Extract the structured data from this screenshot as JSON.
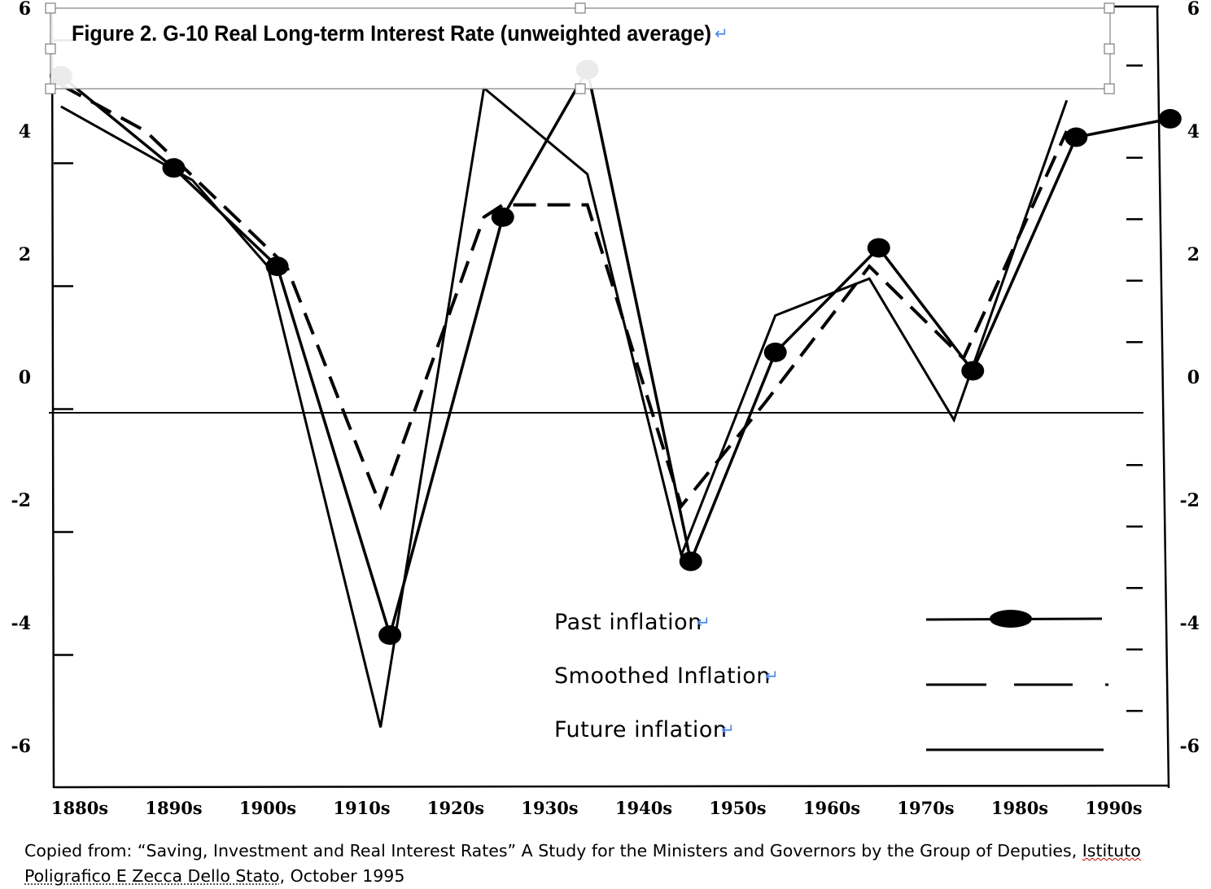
{
  "chart_data": {
    "type": "line",
    "title": "Figure 2. G-10 Real Long-term Interest Rate (unweighted average)",
    "categories": [
      "1880s",
      "1890s",
      "1900s",
      "1910s",
      "1920s",
      "1930s",
      "1940s",
      "1950s",
      "1960s",
      "1970s",
      "1980s",
      "1990s"
    ],
    "y_ticks": [
      "6",
      "4",
      "2",
      "0",
      "-2",
      "-4",
      "-6"
    ],
    "ylim": [
      -6.7,
      6
    ],
    "grid": false,
    "legend_position": "bottom-right",
    "series": [
      {
        "name": "Past inflation",
        "style": "solid-marker",
        "points": [
          [
            -0.2,
            4.9
          ],
          [
            1.0,
            3.4
          ],
          [
            2.1,
            1.8
          ],
          [
            3.3,
            -4.2
          ],
          [
            4.5,
            2.6
          ],
          [
            5.4,
            5.0
          ],
          [
            6.5,
            -3.0
          ],
          [
            7.4,
            0.4
          ],
          [
            8.5,
            2.1
          ],
          [
            9.5,
            0.1
          ],
          [
            10.6,
            3.9
          ],
          [
            11.6,
            4.2
          ]
        ]
      },
      {
        "name": "Smoothed Inflation",
        "style": "dashed",
        "points": [
          [
            -0.2,
            4.75
          ],
          [
            0.7,
            4.0
          ],
          [
            2.2,
            1.8
          ],
          [
            3.2,
            -2.1
          ],
          [
            4.3,
            2.6
          ],
          [
            4.5,
            2.8
          ],
          [
            5.4,
            2.8
          ],
          [
            6.4,
            -2.1
          ],
          [
            7.3,
            -0.4
          ],
          [
            8.4,
            1.8
          ],
          [
            9.4,
            0.3
          ],
          [
            10.5,
            4.0
          ]
        ]
      },
      {
        "name": "Future inflation",
        "style": "solid",
        "points": [
          [
            -0.2,
            4.4
          ],
          [
            1.2,
            3.2
          ],
          [
            2.0,
            1.8
          ],
          [
            3.2,
            -5.7
          ],
          [
            4.3,
            4.7
          ],
          [
            5.4,
            3.3
          ],
          [
            6.4,
            -2.9
          ],
          [
            7.4,
            1.0
          ],
          [
            8.4,
            1.6
          ],
          [
            9.3,
            -0.7
          ],
          [
            10.5,
            4.5
          ]
        ]
      }
    ]
  },
  "legend": [
    {
      "label": "Past inflation"
    },
    {
      "label": "Smoothed Inflation"
    },
    {
      "label": "Future inflation"
    }
  ],
  "caption": {
    "lead": "Copied from:  “Saving, Investment and Real Interest Rates” A Study for the Ministers and Governors by the Group of Deputies, ",
    "italic_word": "Istituto",
    "line2_dotted": "Poligrafico E Zecca Dello Stato",
    "tail": ", October 1995"
  },
  "colors": {
    "ink": "#000000",
    "paragraph_mark": "#4a86e8",
    "spell_underline": "#c00000"
  }
}
